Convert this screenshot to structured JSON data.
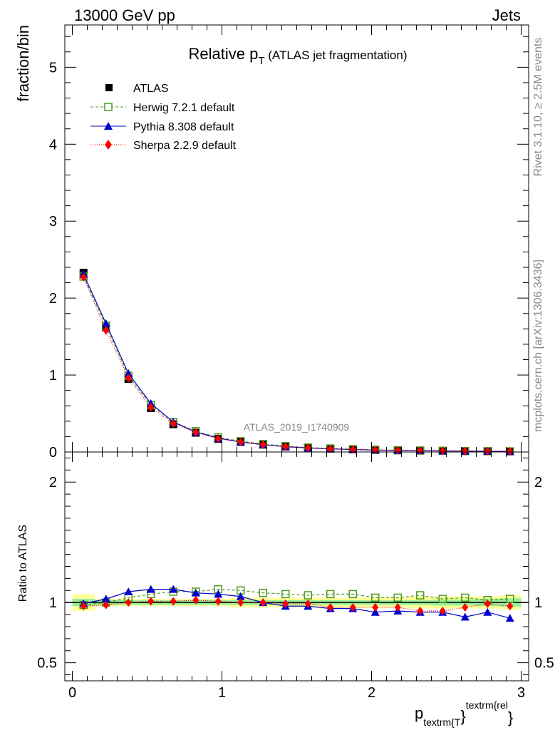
{
  "header": {
    "left": "13000 GeV pp",
    "right": "Jets"
  },
  "side_labels": {
    "rivet": "Rivet 3.1.10, ≥ 2.5M events",
    "mcplots": "mcplots.cern.ch [arXiv:1306.3436]"
  },
  "watermark": "ATLAS_2019_I1740909",
  "colors": {
    "atlas": "#000000",
    "herwig": "#4f9a1c",
    "pythia": "#0000cc",
    "sherpa": "#ff0000",
    "band_inner": "#99ee99",
    "band_outer": "#ffff99"
  },
  "chart_data": [
    {
      "type": "line",
      "title_main": "Relative p",
      "title_sub": "T",
      "title_rest": " (ATLAS jet fragmentation)",
      "ylabel": "fraction/bin",
      "xlim": [
        -0.05,
        3.05
      ],
      "ylim": [
        0,
        5.55
      ],
      "yticks": [
        0,
        1,
        2,
        3,
        4,
        5
      ],
      "x": [
        0.075,
        0.225,
        0.375,
        0.525,
        0.675,
        0.825,
        0.975,
        1.125,
        1.275,
        1.425,
        1.575,
        1.725,
        1.875,
        2.025,
        2.175,
        2.325,
        2.475,
        2.625,
        2.775,
        2.925
      ],
      "legend": {
        "position": "top-left",
        "entries": [
          "ATLAS",
          "Herwig 7.2.1 default",
          "Pythia 8.308 default",
          "Sherpa 2.2.9 default"
        ]
      },
      "series": [
        {
          "name": "ATLAS",
          "values": [
            2.33,
            1.62,
            0.95,
            0.57,
            0.36,
            0.25,
            0.17,
            0.13,
            0.095,
            0.07,
            0.054,
            0.042,
            0.034,
            0.027,
            0.022,
            0.018,
            0.015,
            0.012,
            0.01,
            0.008
          ]
        },
        {
          "name": "Herwig 7.2.1 default",
          "values": [
            2.28,
            1.64,
            0.99,
            0.61,
            0.39,
            0.27,
            0.19,
            0.14,
            0.103,
            0.076,
            0.058,
            0.045,
            0.036,
            0.028,
            0.023,
            0.019,
            0.015,
            0.012,
            0.01,
            0.008
          ]
        },
        {
          "name": "Pythia 8.308 default",
          "values": [
            2.31,
            1.67,
            1.02,
            0.63,
            0.39,
            0.26,
            0.18,
            0.13,
            0.095,
            0.068,
            0.052,
            0.04,
            0.032,
            0.025,
            0.02,
            0.017,
            0.014,
            0.011,
            0.009,
            0.007
          ]
        },
        {
          "name": "Sherpa 2.2.9 default",
          "values": [
            2.27,
            1.58,
            0.96,
            0.58,
            0.37,
            0.255,
            0.172,
            0.13,
            0.095,
            0.069,
            0.053,
            0.04,
            0.033,
            0.026,
            0.021,
            0.017,
            0.014,
            0.011,
            0.01,
            0.008
          ]
        }
      ]
    },
    {
      "type": "line",
      "ylabel": "Ratio to ATLAS",
      "xlabel_main": "p",
      "xlabel_sub": "textrm{T",
      "xlabel_close": "}",
      "xlabel_sup": "textrm{rel",
      "xlabel_end": "}",
      "xlim": [
        -0.05,
        3.05
      ],
      "ylim": [
        0.35,
        2.25
      ],
      "yticks": [
        0.5,
        1,
        2
      ],
      "ytick_labels": [
        "0.5",
        "1",
        "2"
      ],
      "xticks": [
        0,
        1,
        2,
        3
      ],
      "xtick_labels": [
        "0",
        "1",
        "2",
        "3"
      ],
      "x": [
        0.075,
        0.225,
        0.375,
        0.525,
        0.675,
        0.825,
        0.975,
        1.125,
        1.275,
        1.425,
        1.575,
        1.725,
        1.875,
        2.025,
        2.175,
        2.325,
        2.475,
        2.625,
        2.775,
        2.925
      ],
      "band_inner": [
        0.03,
        0.02,
        0.02,
        0.02,
        0.02,
        0.02,
        0.02,
        0.02,
        0.02,
        0.02,
        0.02,
        0.02,
        0.02,
        0.02,
        0.02,
        0.02,
        0.025,
        0.025,
        0.03,
        0.035
      ],
      "band_outer": [
        0.07,
        0.03,
        0.03,
        0.03,
        0.03,
        0.03,
        0.03,
        0.04,
        0.04,
        0.04,
        0.04,
        0.04,
        0.04,
        0.04,
        0.04,
        0.05,
        0.05,
        0.05,
        0.05,
        0.06
      ],
      "series": [
        {
          "name": "Herwig 7.2.1 default",
          "values": [
            0.98,
            1.0,
            1.04,
            1.07,
            1.09,
            1.09,
            1.11,
            1.1,
            1.08,
            1.07,
            1.06,
            1.07,
            1.07,
            1.04,
            1.04,
            1.06,
            1.03,
            1.04,
            1.02,
            1.03
          ]
        },
        {
          "name": "Pythia 8.308 default",
          "values": [
            0.99,
            1.03,
            1.09,
            1.11,
            1.11,
            1.08,
            1.07,
            1.05,
            1.0,
            0.97,
            0.97,
            0.95,
            0.95,
            0.92,
            0.93,
            0.92,
            0.92,
            0.88,
            0.92,
            0.87
          ]
        },
        {
          "name": "Sherpa 2.2.9 default",
          "values": [
            0.97,
            0.98,
            1.0,
            1.01,
            1.01,
            1.02,
            1.01,
            1.0,
            1.0,
            0.99,
            0.99,
            0.96,
            0.96,
            0.96,
            0.96,
            0.93,
            0.93,
            0.96,
            0.99,
            0.97
          ]
        }
      ]
    }
  ]
}
